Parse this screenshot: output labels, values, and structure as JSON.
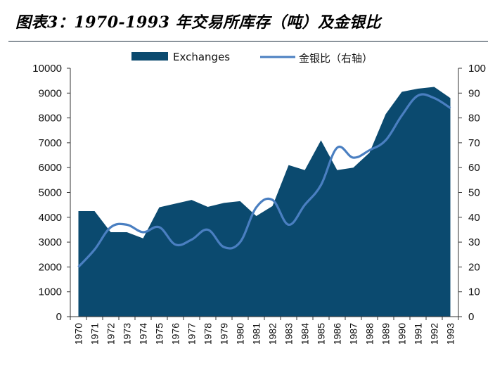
{
  "title": "图表3：1970-1993 年交易所库存（吨）及金银比",
  "chart_data": {
    "type": "area",
    "categories": [
      "1970",
      "1971",
      "1972",
      "1973",
      "1974",
      "1975",
      "1976",
      "1977",
      "1978",
      "1979",
      "1980",
      "1981",
      "1982",
      "1983",
      "1984",
      "1985",
      "1986",
      "1987",
      "1988",
      "1989",
      "1990",
      "1991",
      "1992",
      "1993"
    ],
    "series": [
      {
        "name": "Exchanges",
        "type": "area",
        "axis": "left",
        "color": "#0b4a6f",
        "values": [
          4250,
          4250,
          3400,
          3400,
          3150,
          4400,
          4550,
          4700,
          4420,
          4580,
          4650,
          4050,
          4450,
          6100,
          5900,
          7100,
          5900,
          6000,
          6600,
          8150,
          9050,
          9180,
          9250,
          8800
        ]
      },
      {
        "name": "金银比（右轴）",
        "type": "line",
        "axis": "right",
        "color": "#4a7fc1",
        "values": [
          20,
          27,
          36,
          37,
          34,
          36,
          29,
          31,
          35,
          28,
          30,
          44,
          47,
          37,
          45,
          53,
          68,
          64,
          67,
          71,
          81,
          89,
          88,
          84
        ]
      }
    ],
    "y_left": {
      "ylim": [
        0,
        10000
      ],
      "ticks": [
        "0",
        "1000",
        "2000",
        "3000",
        "4000",
        "5000",
        "6000",
        "7000",
        "8000",
        "9000",
        "10000"
      ]
    },
    "y_right": {
      "ylim": [
        0,
        100
      ],
      "ticks": [
        "0",
        "10",
        "20",
        "30",
        "40",
        "50",
        "60",
        "70",
        "80",
        "90",
        "100"
      ]
    },
    "grid": false,
    "legend": "top-center"
  }
}
